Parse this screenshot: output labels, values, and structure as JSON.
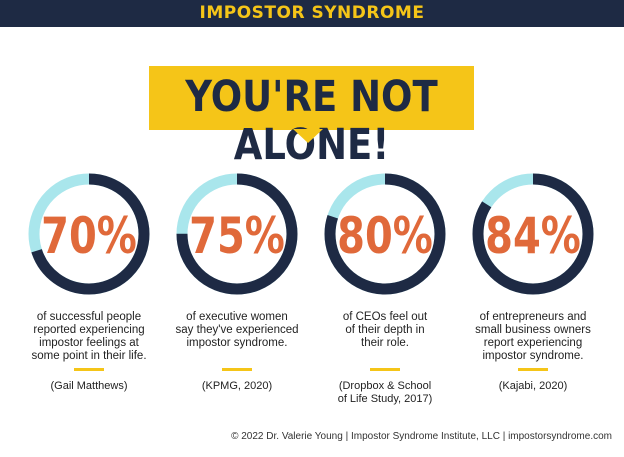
{
  "header": {
    "title": "IMPOSTOR SYNDROME"
  },
  "banner": {
    "text": "YOU'RE NOT ALONE!"
  },
  "colors": {
    "navy": "#1e2a44",
    "yellow": "#f5c518",
    "orange": "#e0693a",
    "light_blue": "#a9e6ec"
  },
  "chart_data": {
    "type": "pie",
    "items": [
      {
        "value": 70,
        "label": "70%",
        "description_lines": [
          "of successful people",
          "reported experiencing",
          "impostor feelings at",
          "some point in their life."
        ],
        "source": [
          "(Gail Matthews)"
        ]
      },
      {
        "value": 75,
        "label": "75%",
        "description_lines": [
          "of executive women",
          "say they've experienced",
          "impostor syndrome."
        ],
        "source": [
          "(KPMG, 2020)"
        ]
      },
      {
        "value": 80,
        "label": "80%",
        "description_lines": [
          "of CEOs feel out",
          "of their depth in",
          "their role."
        ],
        "source": [
          "(Dropbox & School",
          "of Life Study, 2017)"
        ]
      },
      {
        "value": 84,
        "label": "84%",
        "description_lines": [
          "of entrepreneurs and",
          "small business owners",
          "report experiencing",
          "impostor syndrome."
        ],
        "source": [
          "(Kajabi, 2020)"
        ]
      }
    ]
  },
  "footer": {
    "text": "© 2022 Dr. Valerie Young | Impostor Syndrome Institute, LLC | impostorsyndrome.com"
  }
}
